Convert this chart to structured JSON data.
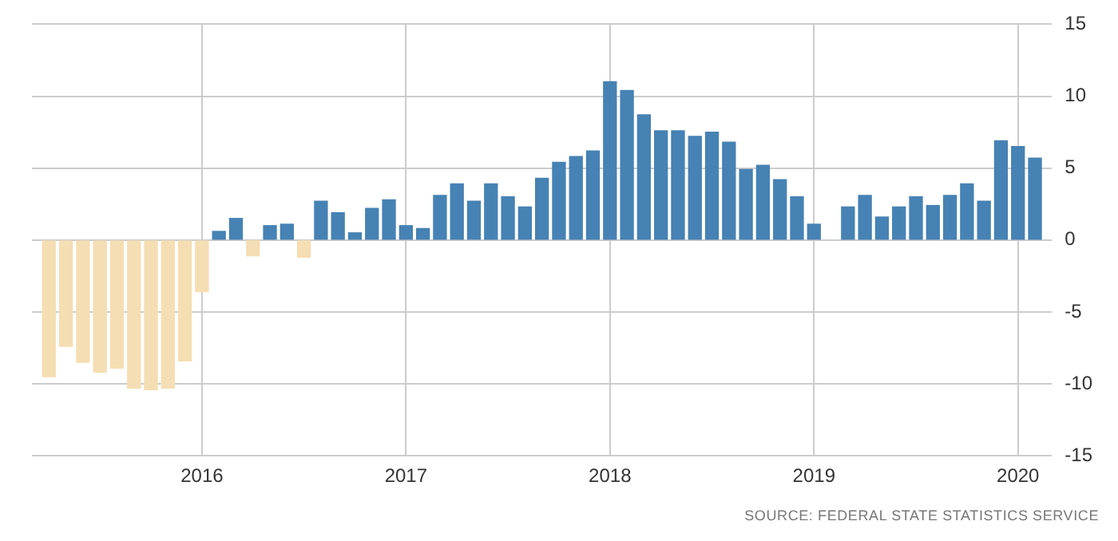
{
  "chart_data": {
    "type": "bar",
    "x": [
      "2015-04",
      "2015-05",
      "2015-06",
      "2015-07",
      "2015-08",
      "2015-09",
      "2015-10",
      "2015-11",
      "2015-12",
      "2016-01",
      "2016-02",
      "2016-03",
      "2016-04",
      "2016-05",
      "2016-06",
      "2016-07",
      "2016-08",
      "2016-09",
      "2016-10",
      "2016-11",
      "2016-12",
      "2017-01",
      "2017-02",
      "2017-03",
      "2017-04",
      "2017-05",
      "2017-06",
      "2017-07",
      "2017-08",
      "2017-09",
      "2017-10",
      "2017-11",
      "2017-12",
      "2018-01",
      "2018-02",
      "2018-03",
      "2018-04",
      "2018-05",
      "2018-06",
      "2018-07",
      "2018-08",
      "2018-09",
      "2018-10",
      "2018-11",
      "2018-12",
      "2019-01",
      "2019-02",
      "2019-03",
      "2019-04",
      "2019-05",
      "2019-06",
      "2019-07",
      "2019-08",
      "2019-09",
      "2019-10",
      "2019-11",
      "2019-12",
      "2020-01",
      "2020-02"
    ],
    "values": [
      -9.5,
      -7.4,
      -8.5,
      -9.2,
      -8.9,
      -10.3,
      -10.4,
      -10.3,
      -8.4,
      -3.6,
      0.6,
      1.5,
      -1.1,
      1.0,
      1.1,
      -1.2,
      2.7,
      1.9,
      0.5,
      2.2,
      2.8,
      1.0,
      0.8,
      3.1,
      3.9,
      2.7,
      3.9,
      3.0,
      2.3,
      4.3,
      5.4,
      5.8,
      6.2,
      11.0,
      10.4,
      8.7,
      7.6,
      7.6,
      7.2,
      7.5,
      6.8,
      4.9,
      5.2,
      4.2,
      3.0,
      1.1,
      null,
      2.3,
      3.1,
      1.6,
      2.3,
      3.0,
      2.4,
      3.1,
      3.9,
      2.7,
      6.9,
      6.5,
      5.7
    ],
    "colors": [
      "#f5deb3",
      "#f5deb3",
      "#f5deb3",
      "#f5deb3",
      "#f5deb3",
      "#f5deb3",
      "#f5deb3",
      "#f5deb3",
      "#f5deb3",
      "#f5deb3",
      "#4682b4",
      "#4682b4",
      "#f5deb3",
      "#4682b4",
      "#4682b4",
      "#f5deb3",
      "#4682b4",
      "#4682b4",
      "#4682b4",
      "#4682b4",
      "#4682b4",
      "#4682b4",
      "#4682b4",
      "#4682b4",
      "#4682b4",
      "#4682b4",
      "#4682b4",
      "#4682b4",
      "#4682b4",
      "#4682b4",
      "#4682b4",
      "#4682b4",
      "#4682b4",
      "#4682b4",
      "#4682b4",
      "#4682b4",
      "#4682b4",
      "#4682b4",
      "#4682b4",
      "#4682b4",
      "#4682b4",
      "#4682b4",
      "#4682b4",
      "#4682b4",
      "#4682b4",
      "#4682b4",
      "#4682b4",
      "#4682b4",
      "#4682b4",
      "#4682b4",
      "#4682b4",
      "#4682b4",
      "#4682b4",
      "#4682b4",
      "#4682b4",
      "#4682b4",
      "#4682b4",
      "#4682b4",
      "#4682b4"
    ],
    "xlim": [
      "2015-03",
      "2020-03"
    ],
    "xticks": [
      "2016",
      "2017",
      "2018",
      "2019",
      "2020"
    ],
    "ylim": [
      -15,
      15
    ],
    "yticks": [
      -15,
      -10,
      -5,
      0,
      5,
      10,
      15
    ],
    "grid": true,
    "annotations": [
      "SOURCE: FEDERAL STATE STATISTICS SERVICE"
    ]
  }
}
